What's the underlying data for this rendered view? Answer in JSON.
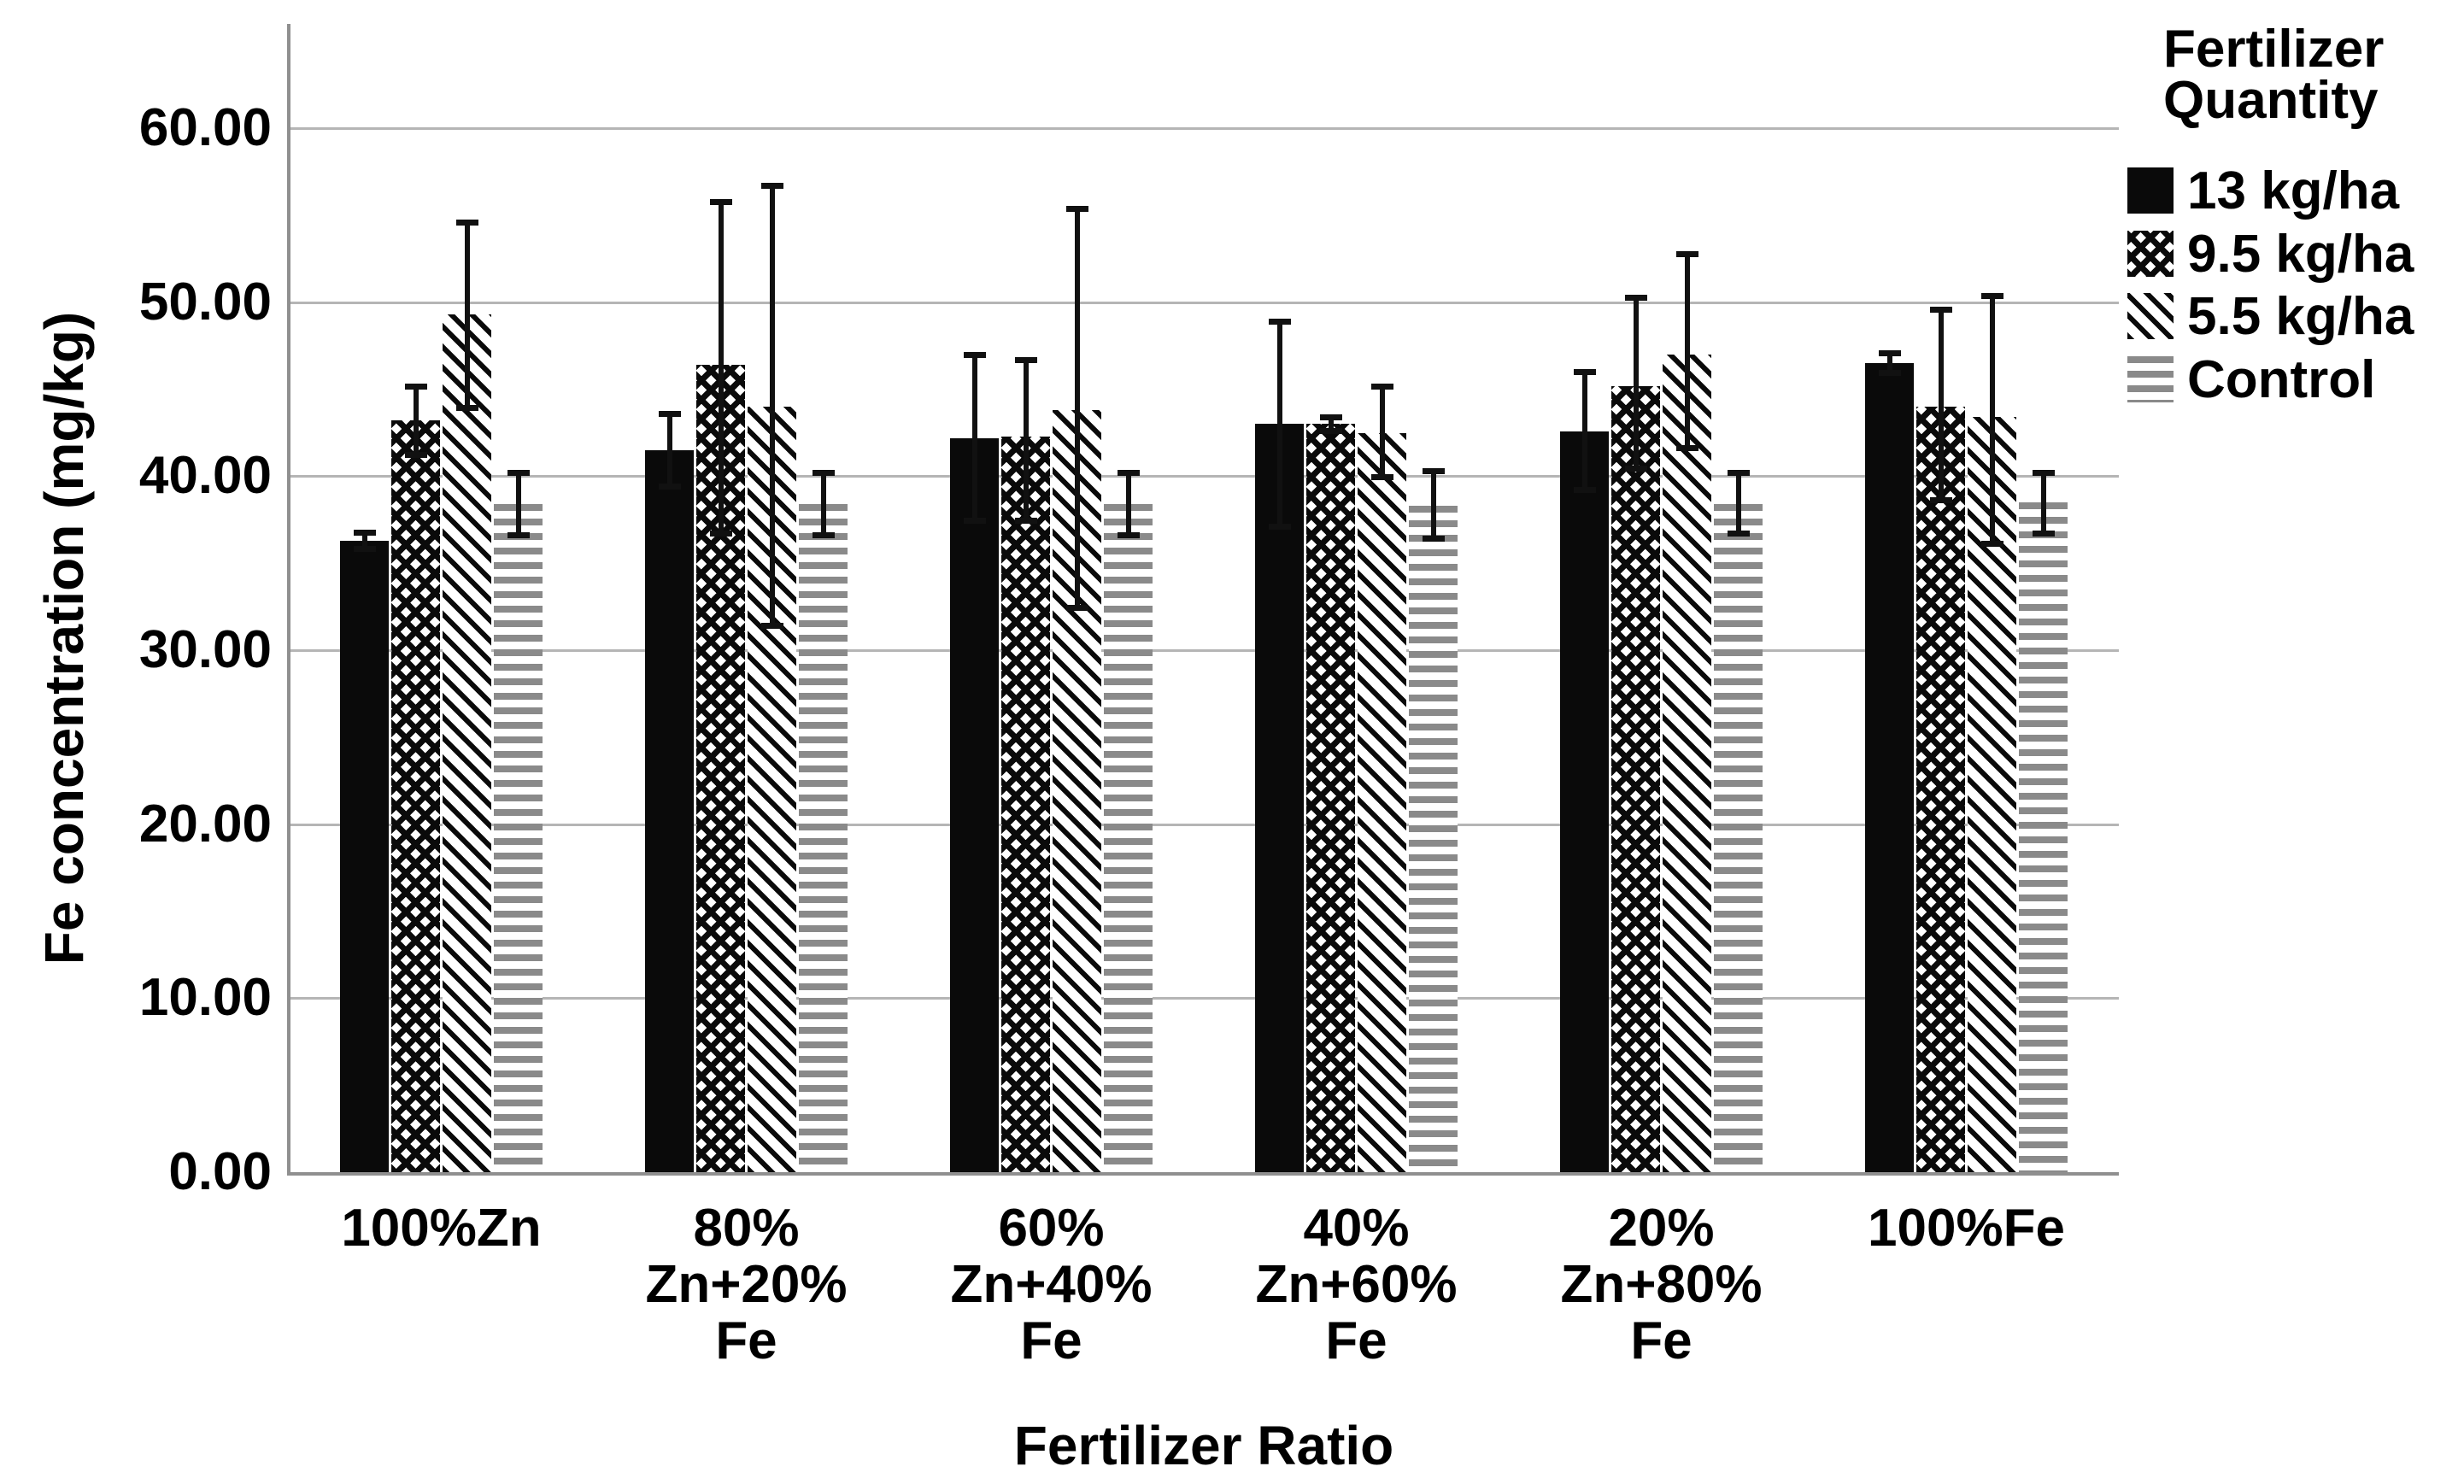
{
  "chart_data": {
    "type": "bar",
    "title": "",
    "xlabel": "Fertilizer Ratio",
    "ylabel": "Fe concentration (mg/kg)",
    "ylim": [
      0,
      66
    ],
    "grid": "horizontal-only",
    "legend_position": "right",
    "legend_title": "Fertilizer Quantity",
    "legend_title_lines": [
      "Fertilizer",
      "Quantity"
    ],
    "yticks": {
      "values": [
        0,
        10,
        20,
        30,
        40,
        50,
        60
      ],
      "labels": [
        "0.00",
        "10.00",
        "20.00",
        "30.00",
        "40.00",
        "50.00",
        "60.00"
      ]
    },
    "categories": [
      "100%Zn",
      "80% Zn+20% Fe",
      "60% Zn+40% Fe",
      "40% Zn+60% Fe",
      "20% Zn+80% Fe",
      "100%Fe"
    ],
    "category_label_lines": [
      [
        "100%Zn"
      ],
      [
        "80%",
        "Zn+20%",
        "Fe"
      ],
      [
        "60%",
        "Zn+40%",
        "Fe"
      ],
      [
        "40%",
        "Zn+60%",
        "Fe"
      ],
      [
        "20%",
        "Zn+80%",
        "Fe"
      ],
      [
        "100%Fe"
      ]
    ],
    "series": [
      {
        "name": "13 kg/ha",
        "pattern": "solid-black",
        "values": [
          36.3,
          41.5,
          42.2,
          43.0,
          42.6,
          46.5
        ],
        "err_up": [
          0.5,
          2.1,
          4.8,
          5.9,
          3.4,
          0.6
        ],
        "err_down": [
          0.5,
          2.1,
          4.8,
          5.9,
          3.4,
          0.6
        ]
      },
      {
        "name": "9.5 kg/ha",
        "pattern": "checker",
        "values": [
          43.2,
          46.4,
          42.3,
          43.0,
          45.2,
          44.0
        ],
        "err_up": [
          2.0,
          9.4,
          4.4,
          0.4,
          5.1,
          5.6
        ],
        "err_down": [
          2.0,
          9.7,
          4.9,
          0.4,
          4.8,
          5.4
        ]
      },
      {
        "name": "5.5 kg/ha",
        "pattern": "diagonal",
        "values": [
          49.3,
          44.0,
          43.8,
          42.5,
          47.0,
          43.4
        ],
        "err_up": [
          5.3,
          12.7,
          11.6,
          2.7,
          5.8,
          7.0
        ],
        "err_down": [
          5.4,
          12.6,
          11.4,
          2.6,
          5.4,
          7.3
        ]
      },
      {
        "name": "Control",
        "pattern": "hstripes",
        "values": [
          38.4,
          38.4,
          38.4,
          38.3,
          38.4,
          38.5
        ],
        "err_up": [
          1.8,
          1.8,
          1.8,
          2.0,
          1.8,
          1.7
        ],
        "err_down": [
          1.8,
          1.8,
          1.8,
          1.9,
          1.7,
          1.8
        ]
      }
    ],
    "colors": {
      "bar_black": "#0a0a0a",
      "stripe_gray": "#8a8a8a",
      "gridline": "#b5b5b5",
      "axis": "#8f8f8f",
      "error_bar": "#111111",
      "text": "#000000",
      "background": "#ffffff"
    }
  }
}
